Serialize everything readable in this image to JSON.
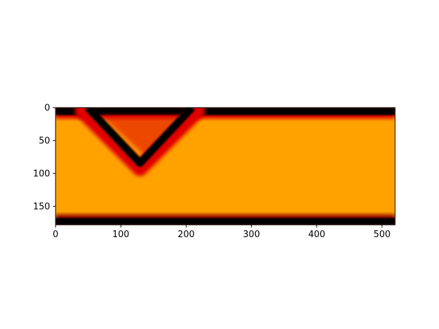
{
  "chart_data": {
    "type": "heatmap",
    "title": "",
    "xlabel": "",
    "ylabel": "",
    "x_range": [
      0,
      520
    ],
    "y_range": [
      0,
      178
    ],
    "y_inverted": true,
    "x_ticks": [
      0,
      100,
      200,
      300,
      400,
      500
    ],
    "y_ticks": [
      0,
      50,
      100,
      150
    ],
    "colormap": "hot",
    "colors": {
      "background_field": "#ffa200",
      "edge_dark": "#000000",
      "glow_red": "#e00000",
      "dark_red": "#8c0000"
    },
    "features": [
      {
        "name": "top dark band",
        "x": [
          0,
          520
        ],
        "y": [
          0,
          12
        ]
      },
      {
        "name": "bottom dark band",
        "x": [
          0,
          520
        ],
        "y": [
          168,
          178
        ]
      },
      {
        "name": "V-shaped dark ridge",
        "vertices": [
          [
            50,
            0
          ],
          [
            130,
            84
          ],
          [
            210,
            0
          ]
        ]
      }
    ]
  }
}
